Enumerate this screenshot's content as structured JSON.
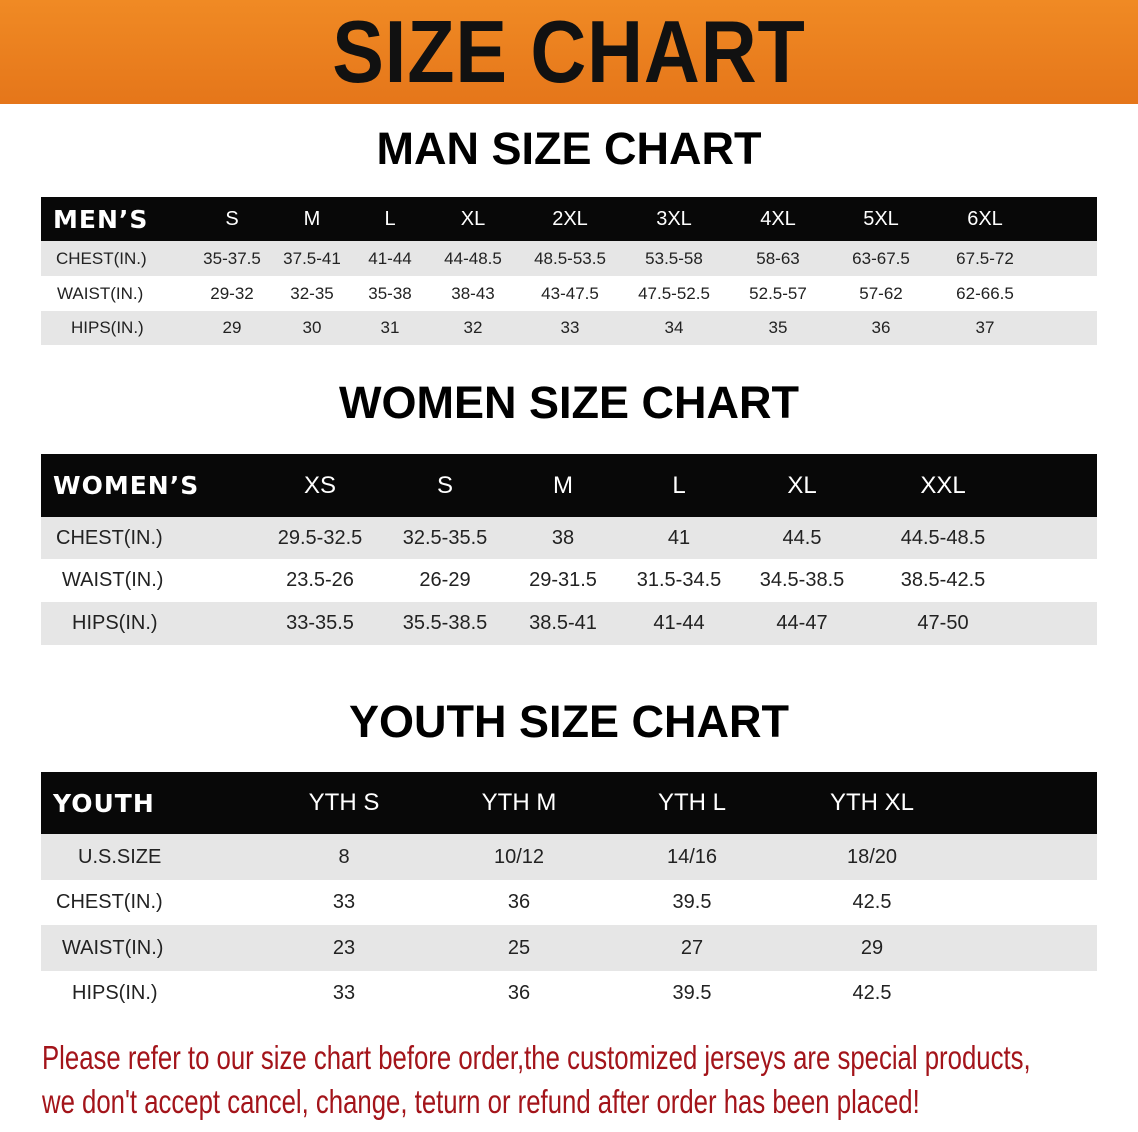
{
  "banner_title": "SIZE CHART",
  "accent_color": "#e87d1e",
  "note_color": "#a3141a",
  "men": {
    "title": "MAN SIZE CHART",
    "header_label": "MEN’S",
    "sizes": [
      "S",
      "M",
      "L",
      "XL",
      "2XL",
      "3XL",
      "4XL",
      "5XL",
      "6XL"
    ],
    "rows": [
      {
        "label": "CHEST(IN.)",
        "values": [
          "35-37.5",
          "37.5-41",
          "41-44",
          "44-48.5",
          "48.5-53.5",
          "53.5-58",
          "58-63",
          "63-67.5",
          "67.5-72"
        ]
      },
      {
        "label": "WAIST(IN.)",
        "values": [
          "29-32",
          "32-35",
          "35-38",
          "38-43",
          "43-47.5",
          "47.5-52.5",
          "52.5-57",
          "57-62",
          "62-66.5"
        ]
      },
      {
        "label": "HIPS(IN.)",
        "values": [
          "29",
          "30",
          "31",
          "32",
          "33",
          "34",
          "35",
          "36",
          "37"
        ]
      }
    ]
  },
  "women": {
    "title": "WOMEN SIZE CHART",
    "header_label": "WOMEN’S",
    "sizes": [
      "XS",
      "S",
      "M",
      "L",
      "XL",
      "XXL"
    ],
    "rows": [
      {
        "label": "CHEST(IN.)",
        "values": [
          "29.5-32.5",
          "32.5-35.5",
          "38",
          "41",
          "44.5",
          "44.5-48.5"
        ]
      },
      {
        "label": "WAIST(IN.)",
        "values": [
          "23.5-26",
          "26-29",
          "29-31.5",
          "31.5-34.5",
          "34.5-38.5",
          "38.5-42.5"
        ]
      },
      {
        "label": "HIPS(IN.)",
        "values": [
          "33-35.5",
          "35.5-38.5",
          "38.5-41",
          "41-44",
          "44-47",
          "47-50"
        ]
      }
    ]
  },
  "youth": {
    "title": "YOUTH SIZE CHART",
    "header_label": "YOUTH",
    "sizes": [
      "YTH S",
      "YTH M",
      "YTH L",
      "YTH XL"
    ],
    "rows": [
      {
        "label": "U.S.SIZE",
        "values": [
          "8",
          "10/12",
          "14/16",
          "18/20"
        ]
      },
      {
        "label": "CHEST(IN.)",
        "values": [
          "33",
          "36",
          "39.5",
          "42.5"
        ]
      },
      {
        "label": "WAIST(IN.)",
        "values": [
          "23",
          "25",
          "27",
          "29"
        ]
      },
      {
        "label": "HIPS(IN.)",
        "values": [
          "33",
          "36",
          "39.5",
          "42.5"
        ]
      }
    ]
  },
  "note": {
    "line1": "Please refer to our size chart before order,the customized jerseys are special products,",
    "line2": "we don't accept cancel, change, teturn or refund after order has been placed!"
  }
}
